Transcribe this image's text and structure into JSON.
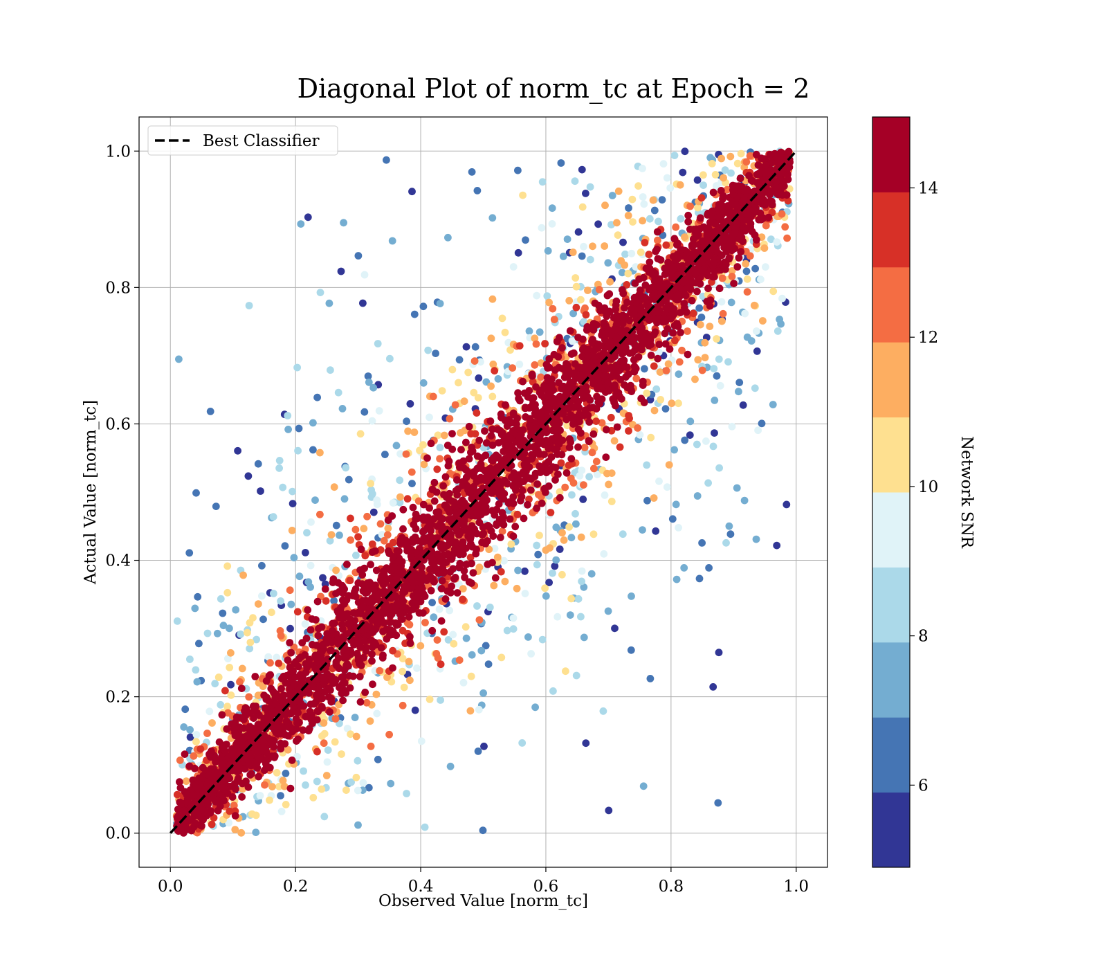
{
  "chart_data": {
    "type": "scatter",
    "title": "Diagonal Plot of norm_tc at Epoch = 2",
    "xlabel": "Observed Value [norm_tc]",
    "ylabel": "Actual Value [norm_tc]",
    "xlim": [
      -0.05,
      1.05
    ],
    "ylim": [
      -0.05,
      1.05
    ],
    "x_ticks": [
      "0.0",
      "0.2",
      "0.4",
      "0.6",
      "0.8",
      "1.0"
    ],
    "y_ticks": [
      "0.0",
      "0.2",
      "0.4",
      "0.6",
      "0.8",
      "1.0"
    ],
    "grid": true,
    "legend": {
      "placement": "upper-left",
      "entries": [
        "Best Classifier"
      ]
    },
    "reference_line": {
      "name": "Best Classifier",
      "style": "dashed",
      "color": "#000000",
      "x": [
        0,
        1
      ],
      "y": [
        0,
        1
      ]
    },
    "colorbar": {
      "label": "Network SNR",
      "range": [
        4.9,
        14.95
      ],
      "ticks": [
        "6",
        "8",
        "10",
        "12",
        "14"
      ],
      "tick_values": [
        6,
        8,
        10,
        12,
        14
      ],
      "colors": [
        "#313695",
        "#4575b4",
        "#74add1",
        "#abd9e9",
        "#e0f3f8",
        "#fee090",
        "#fdae61",
        "#f46d43",
        "#d73027",
        "#a50026"
      ]
    },
    "distribution": {
      "high_snr_band": "points with SNR above 14 lie along the diagonal within about 0.1",
      "mid_snr_spread": "points with SNR 10-14 spread up to about 0.25 from the diagonal",
      "low_snr_spread": "points with SNR 5-10 spread up to about 0.45 from the diagonal"
    }
  }
}
